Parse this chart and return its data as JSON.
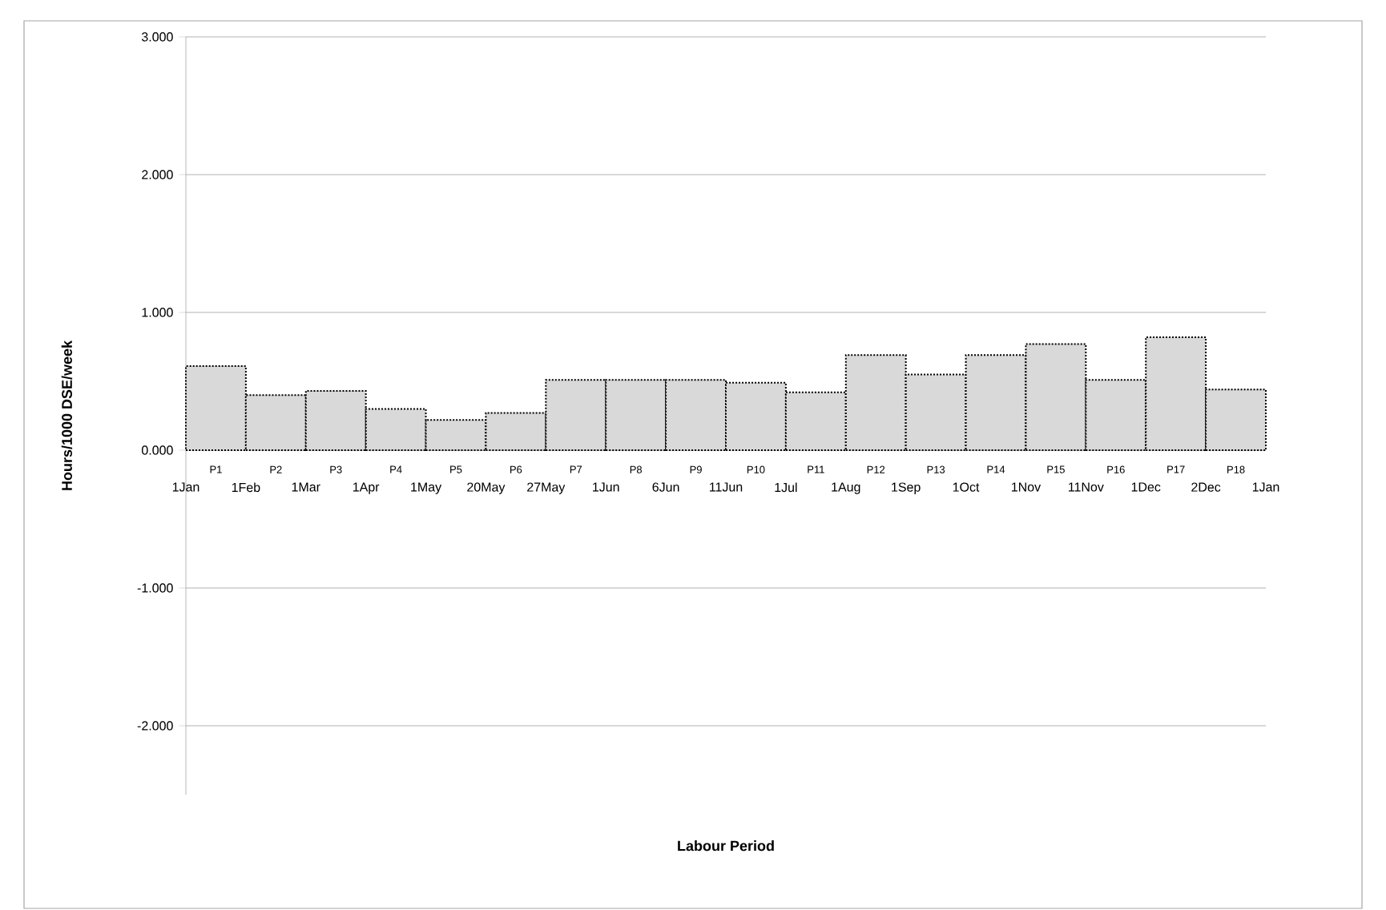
{
  "chart_data": {
    "type": "bar",
    "xlabel": "Labour Period",
    "ylabel": "Hours/1000 DSE/week",
    "categories": [
      "P1",
      "P2",
      "P3",
      "P4",
      "P5",
      "P6",
      "P7",
      "P8",
      "P9",
      "P10",
      "P11",
      "P12",
      "P13",
      "P14",
      "P15",
      "P16",
      "P17",
      "P18"
    ],
    "values": [
      0.61,
      0.4,
      0.43,
      0.3,
      0.22,
      0.27,
      0.51,
      0.51,
      0.51,
      0.49,
      0.42,
      0.69,
      0.55,
      0.69,
      0.77,
      0.51,
      0.82,
      0.44
    ],
    "color": "#d9d9d9",
    "line_style": "dotted",
    "ylim": [
      -2.5,
      3
    ],
    "yticks": [
      {
        "value": -2,
        "label": "-2.000"
      },
      {
        "value": -1,
        "label": "-1.000"
      },
      {
        "value": 0,
        "label": "0.000"
      },
      {
        "value": 1,
        "label": "1.000"
      },
      {
        "value": 2,
        "label": "2.000"
      },
      {
        "value": 3,
        "label": "3.000"
      }
    ],
    "grid": "y",
    "annotations": [
      "1Jan",
      "1Feb",
      "1Mar",
      "1Apr",
      "1May",
      "20May",
      "27May",
      "1Jun",
      "6Jun",
      "11Jun",
      "1Jul",
      "1Aug",
      "1Sep",
      "1Oct",
      "1Nov",
      "11Nov",
      "1Dec",
      "2Dec",
      "1Jan"
    ]
  }
}
